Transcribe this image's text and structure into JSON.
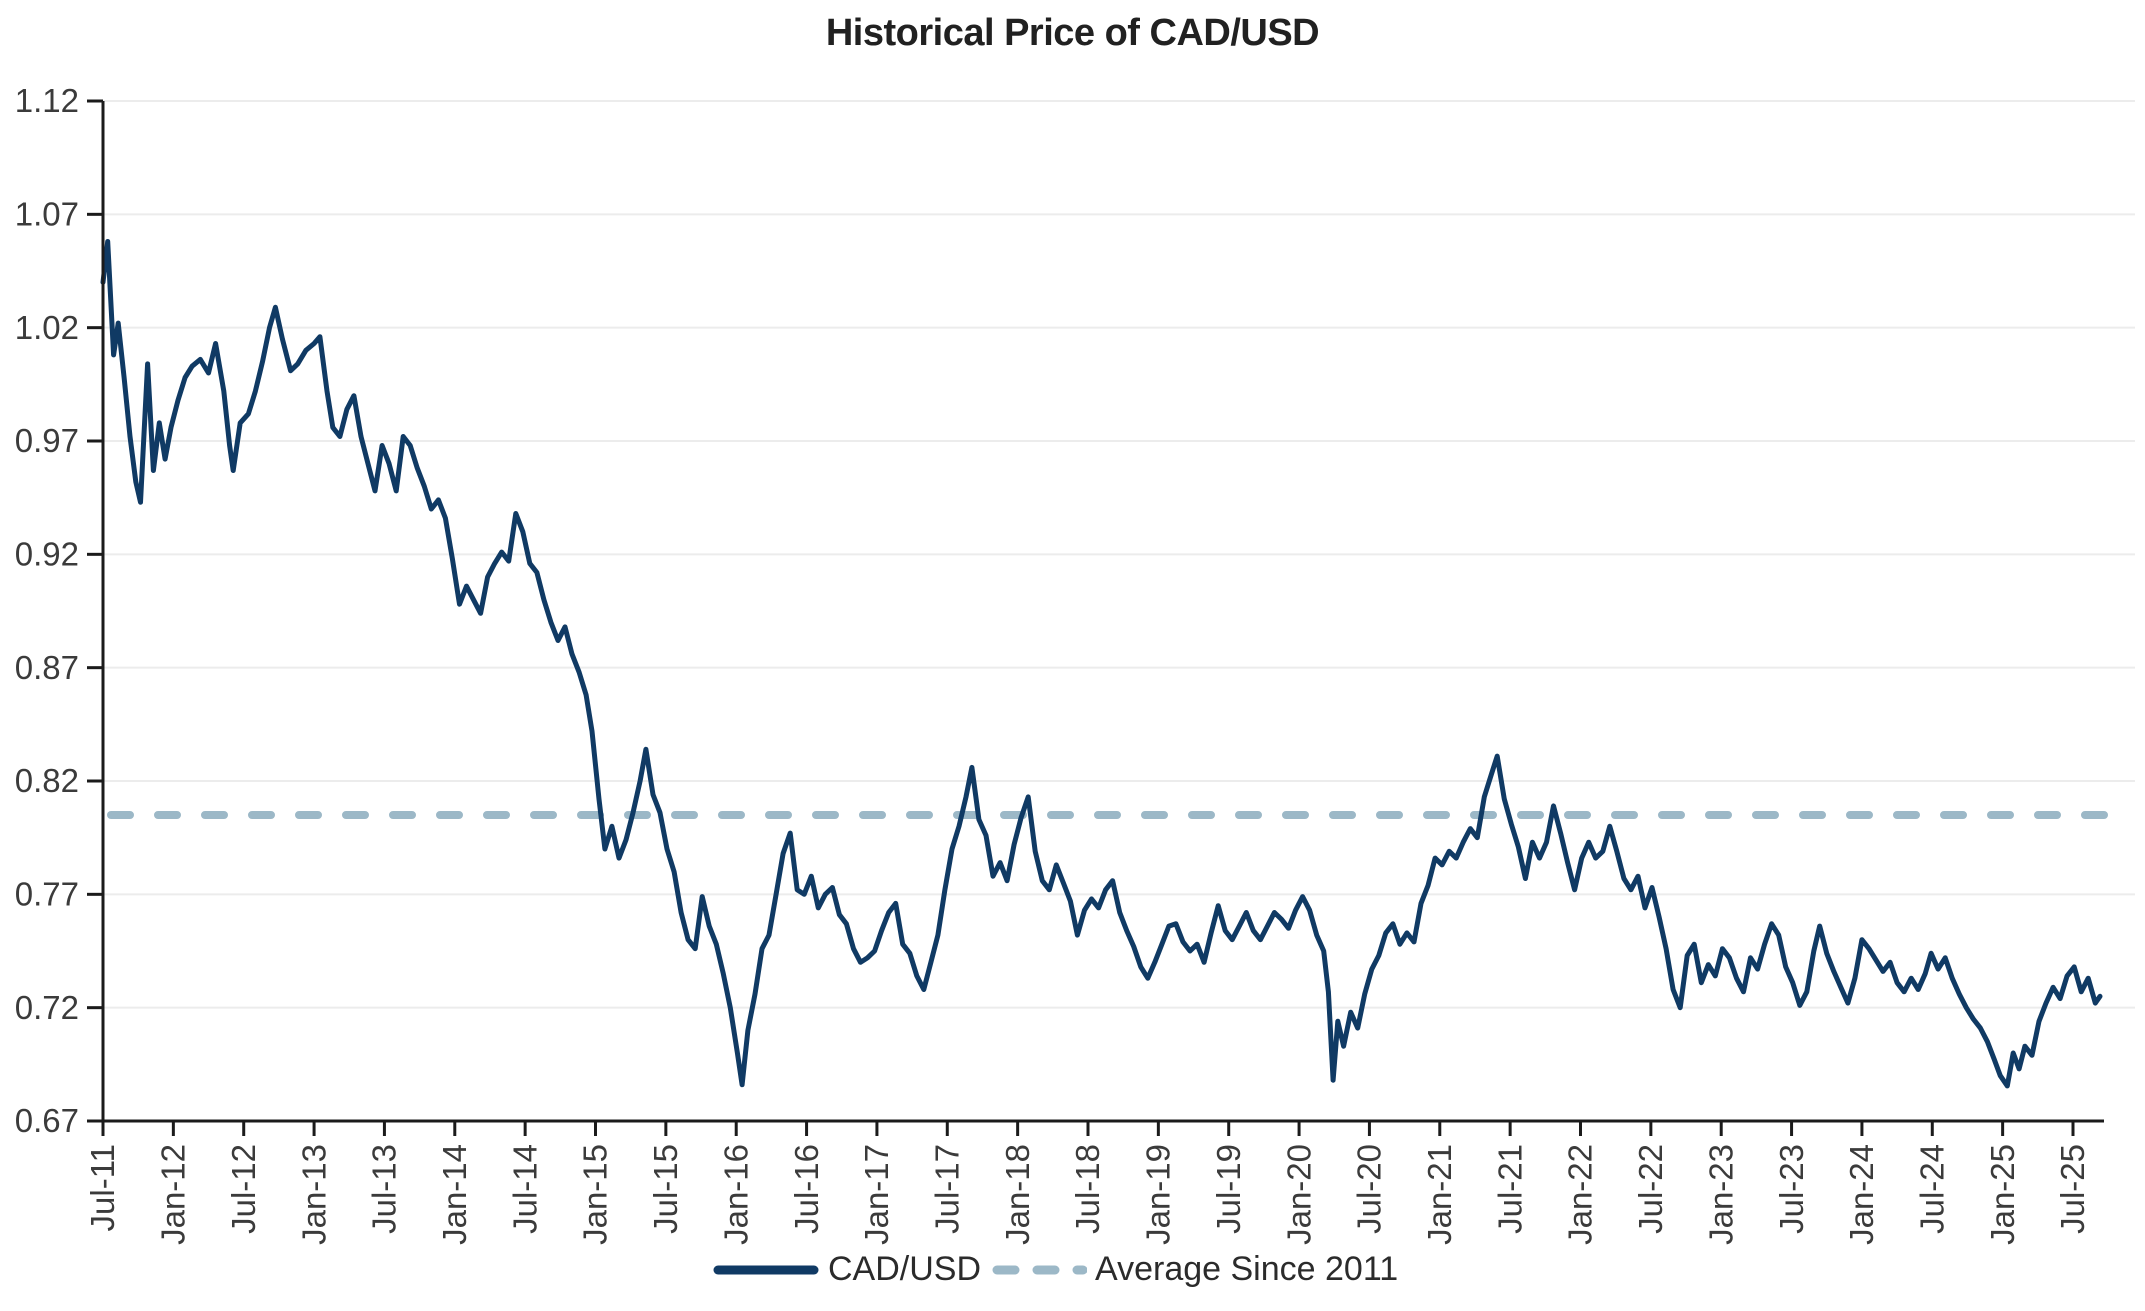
{
  "title": "Historical Price of CAD/USD",
  "colors": {
    "line_navy": "#103a64",
    "average_dash": "#9cb8c7",
    "grid": "#ececec",
    "axis": "#1b1b1b",
    "tick_label": "#3b3b3b",
    "title": "#212121",
    "background": "#ffffff"
  },
  "legend": {
    "items": [
      {
        "label": "CAD/USD",
        "style": "solid"
      },
      {
        "label": "Average Since 2011",
        "style": "dashed"
      }
    ]
  },
  "chart_data": {
    "type": "line",
    "title": "Historical Price of CAD/USD",
    "xlabel": "",
    "ylabel": "",
    "ylim": [
      0.67,
      1.12
    ],
    "y_ticks": [
      1.12,
      1.07,
      1.02,
      0.97,
      0.92,
      0.87,
      0.82,
      0.77,
      0.72,
      0.67
    ],
    "grid": "horizontal",
    "legend_position": "bottom",
    "x_tick_interval_months": 6,
    "x_tick_labels": [
      "Jul-11",
      "Jan-12",
      "Jul-12",
      "Jan-13",
      "Jul-13",
      "Jan-14",
      "Jul-14",
      "Jan-15",
      "Jul-15",
      "Jan-16",
      "Jul-16",
      "Jan-17",
      "Jul-17",
      "Jan-18",
      "Jul-18",
      "Jan-19",
      "Jul-19",
      "Jan-20",
      "Jul-20",
      "Jan-21",
      "Jul-21",
      "Jan-22",
      "Jul-22",
      "Jan-23",
      "Jul-23",
      "Jan-24",
      "Jul-24",
      "Jan-25",
      "Jul-25"
    ],
    "x_unit": "months_since_Jul-2011",
    "series": [
      {
        "name": "CAD/USD",
        "style": "solid",
        "points": [
          [
            0,
            1.04
          ],
          [
            0.4,
            1.058
          ],
          [
            0.9,
            1.008
          ],
          [
            1.3,
            1.022
          ],
          [
            1.8,
            0.998
          ],
          [
            2.3,
            0.972
          ],
          [
            2.8,
            0.952
          ],
          [
            3.2,
            0.943
          ],
          [
            3.8,
            1.004
          ],
          [
            4.3,
            0.957
          ],
          [
            4.8,
            0.978
          ],
          [
            5.3,
            0.962
          ],
          [
            5.8,
            0.976
          ],
          [
            6.4,
            0.988
          ],
          [
            7,
            0.998
          ],
          [
            7.6,
            1.003
          ],
          [
            8.3,
            1.006
          ],
          [
            9,
            1.0
          ],
          [
            9.6,
            1.013
          ],
          [
            10.3,
            0.992
          ],
          [
            10.8,
            0.968
          ],
          [
            11.1,
            0.957
          ],
          [
            11.7,
            0.978
          ],
          [
            12.4,
            0.982
          ],
          [
            13,
            0.992
          ],
          [
            13.6,
            1.005
          ],
          [
            14.2,
            1.02
          ],
          [
            14.7,
            1.029
          ],
          [
            15.3,
            1.015
          ],
          [
            16,
            1.001
          ],
          [
            16.6,
            1.004
          ],
          [
            17.3,
            1.01
          ],
          [
            18,
            1.013
          ],
          [
            18.5,
            1.016
          ],
          [
            19.1,
            0.992
          ],
          [
            19.6,
            0.976
          ],
          [
            20.2,
            0.972
          ],
          [
            20.8,
            0.984
          ],
          [
            21.4,
            0.99
          ],
          [
            22,
            0.972
          ],
          [
            22.6,
            0.96
          ],
          [
            23.2,
            0.948
          ],
          [
            23.8,
            0.968
          ],
          [
            24.4,
            0.96
          ],
          [
            25,
            0.948
          ],
          [
            25.6,
            0.972
          ],
          [
            26.2,
            0.968
          ],
          [
            26.8,
            0.958
          ],
          [
            27.4,
            0.95
          ],
          [
            28,
            0.94
          ],
          [
            28.6,
            0.944
          ],
          [
            29.2,
            0.936
          ],
          [
            29.8,
            0.918
          ],
          [
            30.4,
            0.898
          ],
          [
            31,
            0.906
          ],
          [
            31.6,
            0.9
          ],
          [
            32.2,
            0.894
          ],
          [
            32.8,
            0.91
          ],
          [
            33.4,
            0.916
          ],
          [
            34,
            0.921
          ],
          [
            34.6,
            0.917
          ],
          [
            35.2,
            0.938
          ],
          [
            35.8,
            0.93
          ],
          [
            36.4,
            0.916
          ],
          [
            37,
            0.912
          ],
          [
            37.6,
            0.9
          ],
          [
            38.2,
            0.89
          ],
          [
            38.8,
            0.882
          ],
          [
            39.4,
            0.888
          ],
          [
            40,
            0.876
          ],
          [
            40.6,
            0.868
          ],
          [
            41.2,
            0.858
          ],
          [
            41.7,
            0.842
          ],
          [
            42.3,
            0.812
          ],
          [
            42.8,
            0.79
          ],
          [
            43.4,
            0.8
          ],
          [
            44,
            0.786
          ],
          [
            44.6,
            0.794
          ],
          [
            45.2,
            0.806
          ],
          [
            45.8,
            0.82
          ],
          [
            46.3,
            0.834
          ],
          [
            46.9,
            0.814
          ],
          [
            47.5,
            0.806
          ],
          [
            48.1,
            0.79
          ],
          [
            48.7,
            0.78
          ],
          [
            49.3,
            0.762
          ],
          [
            49.9,
            0.75
          ],
          [
            50.5,
            0.746
          ],
          [
            51.1,
            0.769
          ],
          [
            51.7,
            0.756
          ],
          [
            52.3,
            0.748
          ],
          [
            52.9,
            0.735
          ],
          [
            53.5,
            0.72
          ],
          [
            54.1,
            0.7
          ],
          [
            54.5,
            0.686
          ],
          [
            55,
            0.71
          ],
          [
            55.6,
            0.726
          ],
          [
            56.2,
            0.746
          ],
          [
            56.8,
            0.752
          ],
          [
            57.4,
            0.77
          ],
          [
            58,
            0.788
          ],
          [
            58.6,
            0.797
          ],
          [
            59.2,
            0.772
          ],
          [
            59.8,
            0.77
          ],
          [
            60.4,
            0.778
          ],
          [
            61,
            0.764
          ],
          [
            61.6,
            0.77
          ],
          [
            62.2,
            0.773
          ],
          [
            62.8,
            0.761
          ],
          [
            63.4,
            0.757
          ],
          [
            64,
            0.746
          ],
          [
            64.6,
            0.74
          ],
          [
            65.2,
            0.742
          ],
          [
            65.8,
            0.745
          ],
          [
            66.4,
            0.754
          ],
          [
            67,
            0.762
          ],
          [
            67.6,
            0.766
          ],
          [
            68.2,
            0.748
          ],
          [
            68.8,
            0.744
          ],
          [
            69.4,
            0.734
          ],
          [
            70,
            0.728
          ],
          [
            70.6,
            0.74
          ],
          [
            71.2,
            0.752
          ],
          [
            71.8,
            0.772
          ],
          [
            72.4,
            0.79
          ],
          [
            73,
            0.8
          ],
          [
            73.6,
            0.813
          ],
          [
            74.1,
            0.826
          ],
          [
            74.7,
            0.803
          ],
          [
            75.3,
            0.796
          ],
          [
            75.9,
            0.778
          ],
          [
            76.5,
            0.784
          ],
          [
            77.1,
            0.776
          ],
          [
            77.7,
            0.792
          ],
          [
            78.3,
            0.804
          ],
          [
            78.9,
            0.813
          ],
          [
            79.5,
            0.789
          ],
          [
            80.1,
            0.776
          ],
          [
            80.7,
            0.772
          ],
          [
            81.3,
            0.783
          ],
          [
            81.9,
            0.775
          ],
          [
            82.5,
            0.767
          ],
          [
            83.1,
            0.752
          ],
          [
            83.7,
            0.763
          ],
          [
            84.3,
            0.768
          ],
          [
            84.9,
            0.764
          ],
          [
            85.5,
            0.772
          ],
          [
            86.1,
            0.776
          ],
          [
            86.7,
            0.762
          ],
          [
            87.3,
            0.754
          ],
          [
            87.9,
            0.747
          ],
          [
            88.5,
            0.738
          ],
          [
            89.1,
            0.733
          ],
          [
            89.7,
            0.74
          ],
          [
            90.3,
            0.748
          ],
          [
            90.9,
            0.756
          ],
          [
            91.5,
            0.757
          ],
          [
            92.1,
            0.749
          ],
          [
            92.7,
            0.745
          ],
          [
            93.3,
            0.748
          ],
          [
            93.9,
            0.74
          ],
          [
            94.5,
            0.753
          ],
          [
            95.1,
            0.765
          ],
          [
            95.7,
            0.754
          ],
          [
            96.3,
            0.75
          ],
          [
            96.9,
            0.756
          ],
          [
            97.5,
            0.762
          ],
          [
            98.1,
            0.754
          ],
          [
            98.7,
            0.75
          ],
          [
            99.3,
            0.756
          ],
          [
            99.9,
            0.762
          ],
          [
            100.5,
            0.759
          ],
          [
            101.1,
            0.755
          ],
          [
            101.7,
            0.763
          ],
          [
            102.3,
            0.769
          ],
          [
            102.9,
            0.763
          ],
          [
            103.5,
            0.752
          ],
          [
            104.1,
            0.745
          ],
          [
            104.5,
            0.727
          ],
          [
            104.9,
            0.688
          ],
          [
            105.3,
            0.714
          ],
          [
            105.8,
            0.703
          ],
          [
            106.4,
            0.718
          ],
          [
            107,
            0.711
          ],
          [
            107.6,
            0.726
          ],
          [
            108.2,
            0.737
          ],
          [
            108.8,
            0.743
          ],
          [
            109.4,
            0.753
          ],
          [
            110,
            0.757
          ],
          [
            110.6,
            0.748
          ],
          [
            111.2,
            0.753
          ],
          [
            111.8,
            0.749
          ],
          [
            112.4,
            0.766
          ],
          [
            113,
            0.774
          ],
          [
            113.6,
            0.786
          ],
          [
            114.2,
            0.783
          ],
          [
            114.8,
            0.789
          ],
          [
            115.4,
            0.786
          ],
          [
            116,
            0.793
          ],
          [
            116.6,
            0.799
          ],
          [
            117.2,
            0.795
          ],
          [
            117.8,
            0.813
          ],
          [
            118.4,
            0.823
          ],
          [
            118.9,
            0.831
          ],
          [
            119.5,
            0.812
          ],
          [
            120.1,
            0.801
          ],
          [
            120.7,
            0.791
          ],
          [
            121.3,
            0.777
          ],
          [
            121.9,
            0.793
          ],
          [
            122.5,
            0.786
          ],
          [
            123.1,
            0.793
          ],
          [
            123.7,
            0.809
          ],
          [
            124.3,
            0.797
          ],
          [
            124.9,
            0.784
          ],
          [
            125.5,
            0.772
          ],
          [
            126.1,
            0.786
          ],
          [
            126.7,
            0.793
          ],
          [
            127.3,
            0.786
          ],
          [
            127.9,
            0.789
          ],
          [
            128.5,
            0.8
          ],
          [
            129.1,
            0.789
          ],
          [
            129.7,
            0.777
          ],
          [
            130.3,
            0.772
          ],
          [
            130.9,
            0.778
          ],
          [
            131.5,
            0.764
          ],
          [
            132.1,
            0.773
          ],
          [
            132.7,
            0.76
          ],
          [
            133.3,
            0.746
          ],
          [
            133.9,
            0.728
          ],
          [
            134.5,
            0.72
          ],
          [
            135.1,
            0.743
          ],
          [
            135.7,
            0.748
          ],
          [
            136.3,
            0.731
          ],
          [
            136.9,
            0.739
          ],
          [
            137.5,
            0.734
          ],
          [
            138.1,
            0.746
          ],
          [
            138.7,
            0.742
          ],
          [
            139.3,
            0.733
          ],
          [
            139.9,
            0.727
          ],
          [
            140.5,
            0.742
          ],
          [
            141.1,
            0.737
          ],
          [
            141.7,
            0.748
          ],
          [
            142.3,
            0.757
          ],
          [
            142.9,
            0.752
          ],
          [
            143.5,
            0.738
          ],
          [
            144.1,
            0.731
          ],
          [
            144.7,
            0.721
          ],
          [
            145.3,
            0.727
          ],
          [
            145.9,
            0.745
          ],
          [
            146.4,
            0.756
          ],
          [
            147,
            0.744
          ],
          [
            147.6,
            0.736
          ],
          [
            148.2,
            0.729
          ],
          [
            148.8,
            0.722
          ],
          [
            149.4,
            0.733
          ],
          [
            150,
            0.75
          ],
          [
            150.6,
            0.746
          ],
          [
            151.2,
            0.741
          ],
          [
            151.8,
            0.736
          ],
          [
            152.4,
            0.74
          ],
          [
            153,
            0.731
          ],
          [
            153.6,
            0.727
          ],
          [
            154.2,
            0.733
          ],
          [
            154.8,
            0.728
          ],
          [
            155.4,
            0.735
          ],
          [
            155.9,
            0.744
          ],
          [
            156.5,
            0.737
          ],
          [
            157.1,
            0.742
          ],
          [
            157.7,
            0.733
          ],
          [
            158.3,
            0.726
          ],
          [
            158.9,
            0.72
          ],
          [
            159.5,
            0.715
          ],
          [
            160.1,
            0.711
          ],
          [
            160.7,
            0.705
          ],
          [
            161.3,
            0.697
          ],
          [
            161.8,
            0.69
          ],
          [
            162.4,
            0.6855
          ],
          [
            162.9,
            0.7
          ],
          [
            163.4,
            0.693
          ],
          [
            163.9,
            0.703
          ],
          [
            164.5,
            0.699
          ],
          [
            165.1,
            0.714
          ],
          [
            165.7,
            0.722
          ],
          [
            166.3,
            0.729
          ],
          [
            166.9,
            0.724
          ],
          [
            167.5,
            0.734
          ],
          [
            168.1,
            0.738
          ],
          [
            168.7,
            0.727
          ],
          [
            169.3,
            0.733
          ],
          [
            169.9,
            0.722
          ],
          [
            170.3,
            0.725
          ]
        ]
      },
      {
        "name": "Average Since 2011",
        "style": "dashed",
        "value": 0.805
      }
    ]
  }
}
